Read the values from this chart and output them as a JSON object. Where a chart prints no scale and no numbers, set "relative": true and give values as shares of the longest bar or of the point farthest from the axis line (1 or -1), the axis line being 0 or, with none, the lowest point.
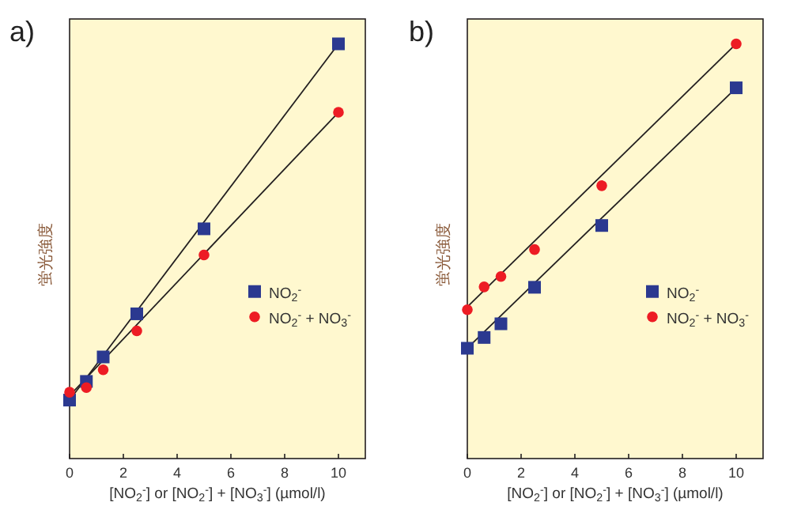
{
  "chart_data": [
    {
      "type": "scatter",
      "title": "a)",
      "xlabel": "[NO$_{2}$$^{-}$] or [NO$_{2}$$^{-}$] + [NO$_{3}$$^{-}$]  (µmol/l)",
      "ylabel": "蛍光強度",
      "relative": true,
      "xlim": [
        0,
        11
      ],
      "xticks": [
        0,
        2,
        4,
        6,
        8,
        10
      ],
      "legend": "right",
      "grid": false,
      "series": [
        {
          "name": "NO$_{2}$$^{-}$",
          "marker": "square",
          "color": "#2b3990",
          "x": [
            0,
            0.625,
            1.25,
            2.5,
            5,
            10
          ],
          "values": [
            0.141,
            0.186,
            0.245,
            0.349,
            0.554,
            1.0
          ]
        },
        {
          "name": "NO$_{2}$$^{-}$ + NO$_{3}$$^{-}$",
          "marker": "circle",
          "color": "#ed1c24",
          "x": [
            0,
            0.625,
            1.25,
            2.5,
            5,
            10
          ],
          "values": [
            0.16,
            0.171,
            0.214,
            0.308,
            0.491,
            0.835
          ]
        },
        {
          "type": "line",
          "color": "#231f20",
          "x": [
            0,
            10
          ],
          "values": [
            0.141,
            1.0
          ]
        },
        {
          "type": "line",
          "color": "#231f20",
          "x": [
            0,
            10
          ],
          "values": [
            0.152,
            0.835
          ]
        }
      ]
    },
    {
      "type": "scatter",
      "title": "b)",
      "xlabel": "[NO$_{2}$$^{-}$] or [NO$_{2}$$^{-}$] + [NO$_{3}$$^{-}$]  (µmol/l)",
      "ylabel": "蛍光強度",
      "relative": true,
      "xlim": [
        0,
        11
      ],
      "xticks": [
        0,
        2,
        4,
        6,
        8,
        10
      ],
      "legend": "right",
      "grid": false,
      "series": [
        {
          "name": "NO$_{2}$$^{-}$",
          "marker": "square",
          "color": "#2b3990",
          "x": [
            0,
            0.625,
            1.25,
            2.5,
            5,
            10
          ],
          "values": [
            0.266,
            0.292,
            0.325,
            0.413,
            0.562,
            0.894
          ]
        },
        {
          "name": "NO$_{2}$$^{-}$ + NO$_{3}$$^{-}$",
          "marker": "circle",
          "color": "#ed1c24",
          "x": [
            0,
            0.625,
            1.25,
            2.5,
            5,
            10
          ],
          "values": [
            0.359,
            0.414,
            0.439,
            0.504,
            0.658,
            1.0
          ]
        },
        {
          "type": "line",
          "color": "#231f20",
          "x": [
            0,
            10
          ],
          "values": [
            0.266,
            0.894
          ]
        },
        {
          "type": "line",
          "color": "#231f20",
          "x": [
            0,
            10
          ],
          "values": [
            0.366,
            1.0
          ]
        }
      ]
    }
  ]
}
